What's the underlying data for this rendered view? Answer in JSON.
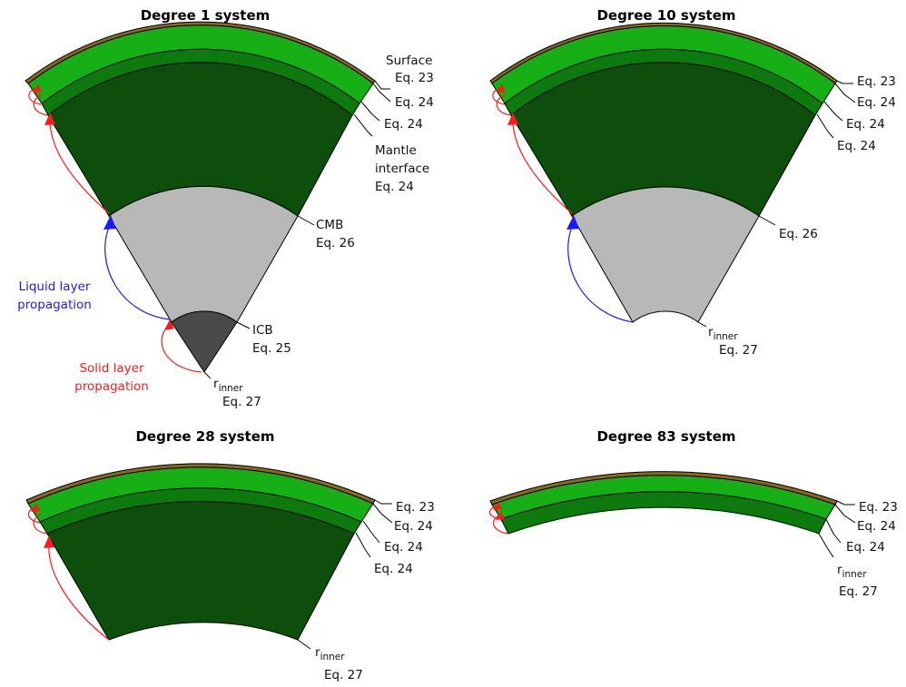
{
  "panels": [
    {
      "title": "Degree 1 system",
      "labels": {
        "surface": "Surface",
        "surface_eq": "Eq. 23",
        "upper_eq_1": "Eq. 24",
        "upper_eq_2": "Eq. 24",
        "mantle_interface": "Mantle",
        "mantle_interface_2": "interface",
        "mantle_eq": "Eq. 24",
        "cmb": "CMB",
        "cmb_eq": "Eq. 26",
        "icb": "ICB",
        "icb_eq": "Eq. 25",
        "r": "r",
        "r_sub": "inner",
        "r_eq": "Eq. 27"
      },
      "annotations": {
        "liquid_1": "Liquid layer",
        "liquid_2": "propagation",
        "solid_1": "Solid layer",
        "solid_2": "propagation"
      }
    },
    {
      "title": "Degree 10 system",
      "labels": {
        "eq_1": "Eq. 23",
        "eq_2": "Eq. 24",
        "eq_3": "Eq. 24",
        "eq_4": "Eq. 24",
        "eq_5": "Eq. 26",
        "r": "r",
        "r_sub": "inner",
        "r_eq": "Eq. 27"
      }
    },
    {
      "title": "Degree 28 system",
      "labels": {
        "eq_1": "Eq. 23",
        "eq_2": "Eq. 24",
        "eq_3": "Eq. 24",
        "eq_4": "Eq. 24",
        "r": "r",
        "r_sub": "inner",
        "r_eq": "Eq. 27"
      }
    },
    {
      "title": "Degree 83 system",
      "labels": {
        "eq_1": "Eq. 23",
        "eq_2": "Eq. 24",
        "eq_3": "Eq. 24",
        "r": "r",
        "r_sub": "inner",
        "r_eq": "Eq. 27"
      }
    }
  ],
  "colors": {
    "crust": "#8a6a18",
    "upper_mantle": "#16b016",
    "mid_mantle": "#0d7a0d",
    "lower_mantle": "#0d4e0d",
    "liquid_core": "#b8b8b8",
    "inner_core": "#4a4a4a",
    "liquid_arrow": "#1a1aff",
    "solid_arrow": "#ff1a1a"
  }
}
